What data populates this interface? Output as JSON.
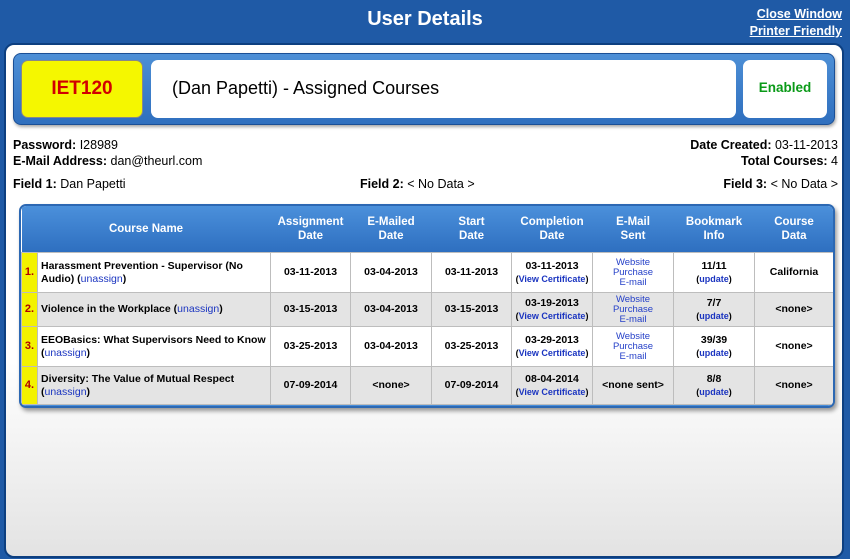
{
  "page": {
    "title": "User Details",
    "close_window": "Close Window",
    "printer_friendly": "Printer Friendly"
  },
  "header": {
    "code": "IET120",
    "title": "(Dan Papetti) - Assigned Courses",
    "status": "Enabled"
  },
  "info": {
    "password_label": "Password:",
    "password": "I28989",
    "email_label": "E-Mail Address:",
    "email": "dan@theurl.com",
    "date_created_label": "Date Created:",
    "date_created": "03-11-2013",
    "total_courses_label": "Total Courses:",
    "total_courses": "4",
    "field1_label": "Field 1:",
    "field1": "Dan Papetti",
    "field2_label": "Field 2:",
    "field2": "< No Data >",
    "field3_label": "Field 3:",
    "field3": "< No Data >"
  },
  "table": {
    "headers": {
      "course_name": "Course Name",
      "assignment_date_1": "Assignment",
      "assignment_date_2": "Date",
      "emailed_date_1": "E-Mailed",
      "emailed_date_2": "Date",
      "start_date_1": "Start",
      "start_date_2": "Date",
      "completion_date_1": "Completion",
      "completion_date_2": "Date",
      "email_sent_1": "E-Mail",
      "email_sent_2": "Sent",
      "bookmark_info_1": "Bookmark",
      "bookmark_info_2": "Info",
      "course_data_1": "Course",
      "course_data_2": "Data"
    },
    "unassign_label": "unassign",
    "view_certificate_label": "View Certificate",
    "update_label": "update",
    "rows": [
      {
        "num": "1.",
        "course": "Harassment Prevention - Supervisor (No Audio)",
        "assignment_date": "03-11-2013",
        "emailed_date": "03-04-2013",
        "start_date": "03-11-2013",
        "completion_date": "03-11-2013",
        "email_sent_line1": "Website Purchase",
        "email_sent_line2": "E-mail",
        "bookmark": "11/11",
        "course_data": "California"
      },
      {
        "num": "2.",
        "course": "Violence in the Workplace",
        "assignment_date": "03-15-2013",
        "emailed_date": "03-04-2013",
        "start_date": "03-15-2013",
        "completion_date": "03-19-2013",
        "email_sent_line1": "Website Purchase",
        "email_sent_line2": "E-mail",
        "bookmark": "7/7",
        "course_data": "<none>"
      },
      {
        "num": "3.",
        "course": "EEOBasics: What Supervisors Need to Know",
        "assignment_date": "03-25-2013",
        "emailed_date": "03-04-2013",
        "start_date": "03-25-2013",
        "completion_date": "03-29-2013",
        "email_sent_line1": "Website Purchase",
        "email_sent_line2": "E-mail",
        "bookmark": "39/39",
        "course_data": "<none>"
      },
      {
        "num": "4.",
        "course": "Diversity: The Value of Mutual Respect",
        "assignment_date": "07-09-2014",
        "emailed_date": "<none>",
        "start_date": "07-09-2014",
        "completion_date": "08-04-2014",
        "email_sent_text": "<none sent>",
        "bookmark": "8/8",
        "course_data": "<none>"
      }
    ]
  },
  "colors": {
    "background": "#1f5aa6",
    "code_bg": "#f5f700",
    "code_text": "#d10000",
    "status_text": "#0a9a18",
    "link": "#1a34c0"
  }
}
